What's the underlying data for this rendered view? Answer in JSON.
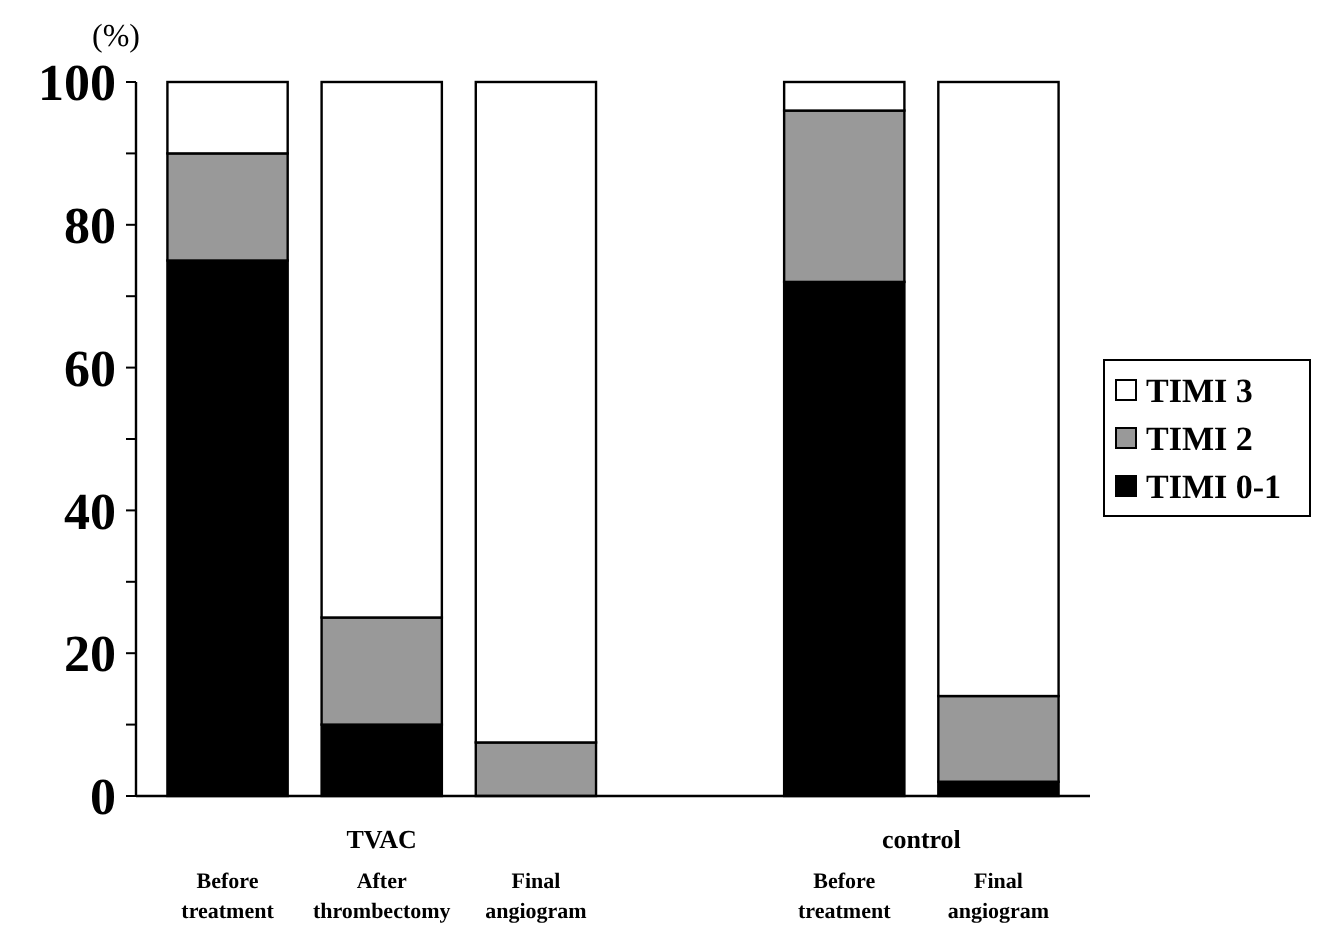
{
  "chart_data": {
    "type": "bar",
    "stacked": true,
    "ylabel": "(%)",
    "categories": [
      "Before treatment",
      "After thrombectomy",
      "Final angiogram",
      null,
      "Before treatment",
      "Final angiogram"
    ],
    "series": [
      {
        "name": "TIMI 0-1",
        "color": "#000000",
        "values": [
          75,
          10,
          0,
          null,
          72,
          2
        ]
      },
      {
        "name": "TIMI 2",
        "color": "#999999",
        "values": [
          15,
          15,
          7.5,
          null,
          24,
          12
        ]
      },
      {
        "name": "TIMI 3",
        "color": "#ffffff",
        "values": [
          10,
          75,
          92.5,
          null,
          4,
          86
        ]
      }
    ],
    "ylim": [
      0,
      100
    ],
    "yticks": [
      0,
      {
        "value": 10,
        "label": null
      },
      20,
      {
        "value": 30,
        "label": null
      },
      40,
      {
        "value": 50,
        "label": null
      },
      60,
      {
        "value": 70,
        "label": null
      },
      80,
      {
        "value": 90,
        "label": null
      },
      100
    ],
    "legend": "right",
    "grid": false,
    "annotations": [
      "TVAC",
      "control"
    ]
  }
}
